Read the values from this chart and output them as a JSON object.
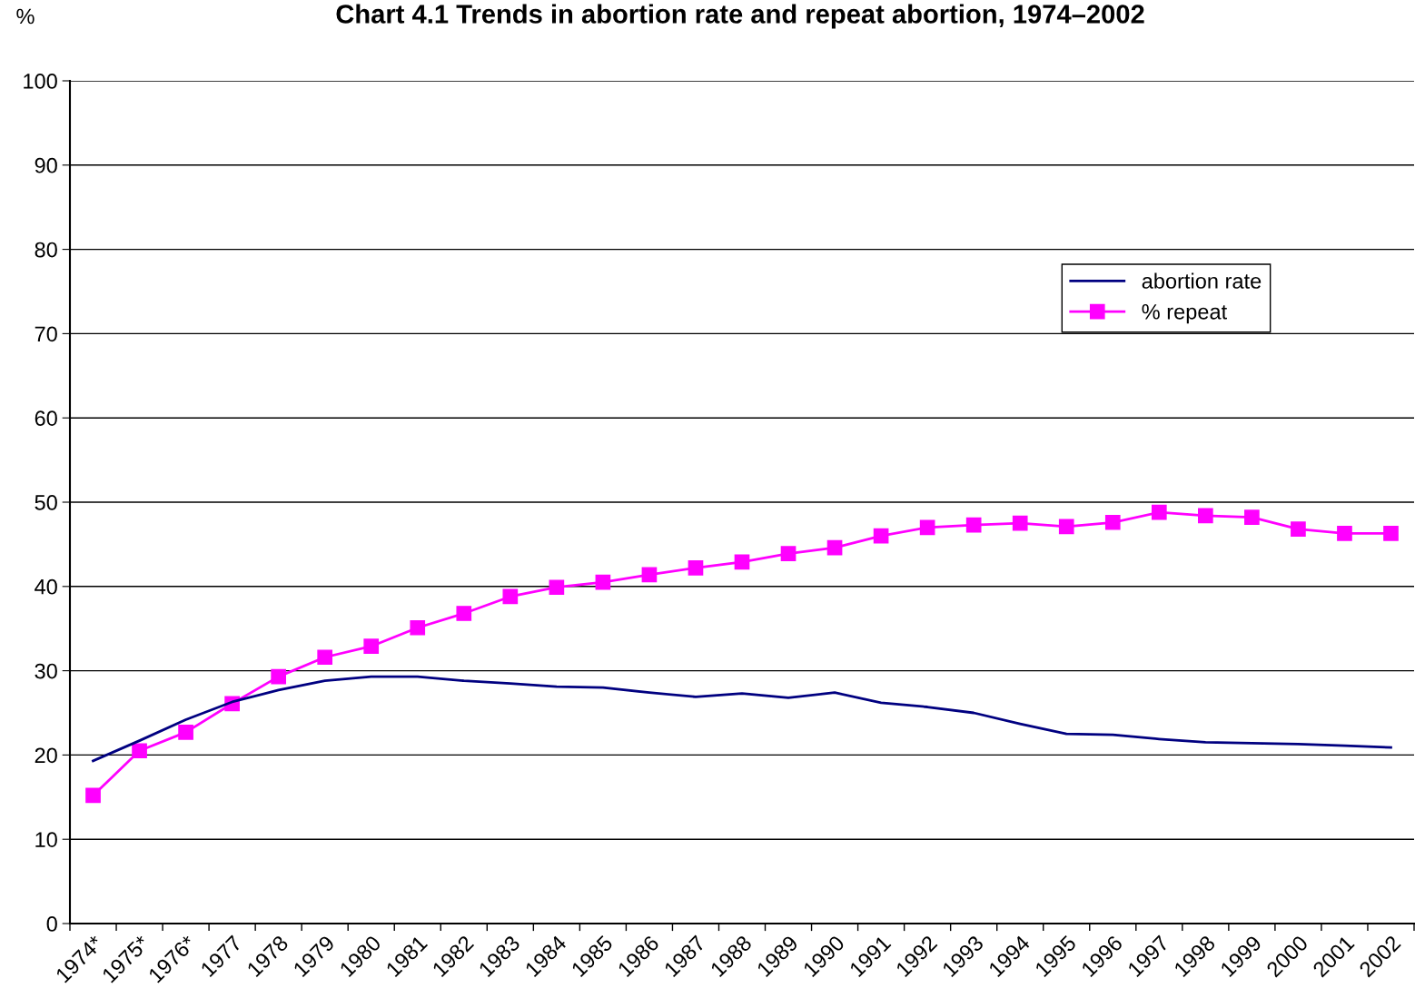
{
  "chart_data": {
    "type": "line",
    "title": "Chart 4.1 Trends in abortion rate and repeat abortion, 1974–2002",
    "ylabel": "%",
    "categories": [
      "1974*",
      "1975*",
      "1976*",
      "1977",
      "1978",
      "1979",
      "1980",
      "1981",
      "1982",
      "1983",
      "1984",
      "1985",
      "1986",
      "1987",
      "1988",
      "1989",
      "1990",
      "1991",
      "1992",
      "1993",
      "1994",
      "1995",
      "1996",
      "1997",
      "1998",
      "1999",
      "2000",
      "2001",
      "2002"
    ],
    "series": [
      {
        "name": "abortion rate",
        "color": "#000080",
        "marker": "none",
        "values": [
          19.3,
          21.7,
          24.2,
          26.3,
          27.7,
          28.8,
          29.3,
          29.3,
          28.8,
          28.5,
          28.1,
          28.0,
          27.4,
          26.9,
          27.3,
          26.8,
          27.4,
          26.2,
          25.7,
          25.0,
          23.7,
          22.5,
          22.4,
          21.9,
          21.5,
          21.4,
          21.3,
          21.1,
          20.9
        ]
      },
      {
        "name": "% repeat",
        "color": "#ff00ff",
        "marker": "square",
        "values": [
          15.2,
          20.5,
          22.7,
          26.1,
          29.3,
          31.6,
          32.9,
          35.1,
          36.8,
          38.8,
          39.9,
          40.5,
          41.4,
          42.2,
          42.9,
          43.9,
          44.6,
          46.0,
          47.0,
          47.3,
          47.5,
          47.1,
          47.6,
          48.8,
          48.4,
          48.2,
          46.8,
          46.3,
          46.3
        ]
      }
    ],
    "ylim": [
      0,
      100
    ],
    "yticks": [
      0,
      10,
      20,
      30,
      40,
      50,
      60,
      70,
      80,
      90,
      100
    ],
    "grid": "y",
    "legend": "top right",
    "line_style": "solid"
  }
}
